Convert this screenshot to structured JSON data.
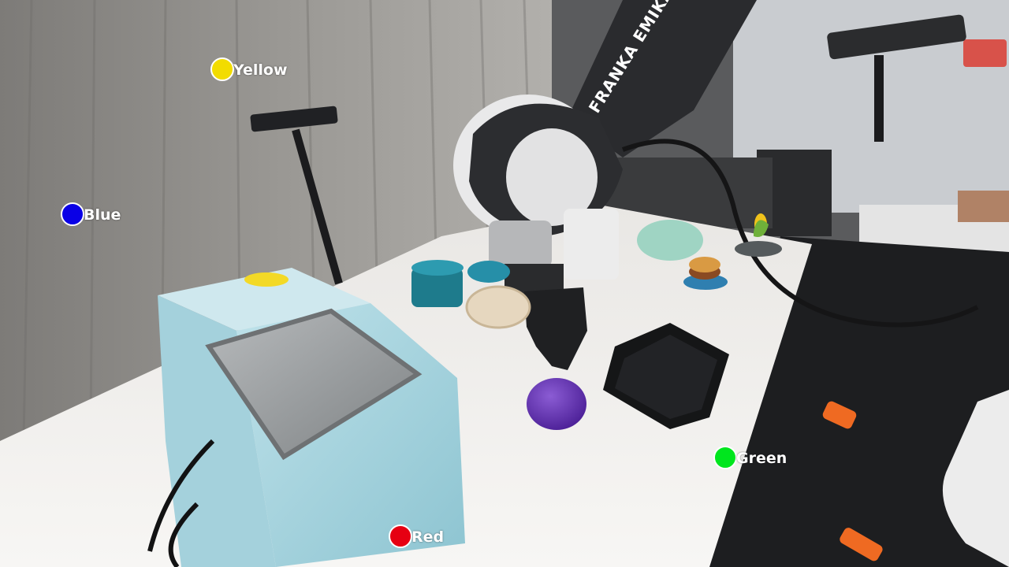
{
  "robot_brand": "FRANKA EMIKA",
  "markers": {
    "yellow": {
      "label": "Yellow",
      "color": "#f2dc00"
    },
    "blue": {
      "label": "Blue",
      "color": "#0a00e6"
    },
    "green": {
      "label": "Green",
      "color": "#00e61e"
    },
    "red": {
      "label": "Red",
      "color": "#e60012"
    }
  }
}
